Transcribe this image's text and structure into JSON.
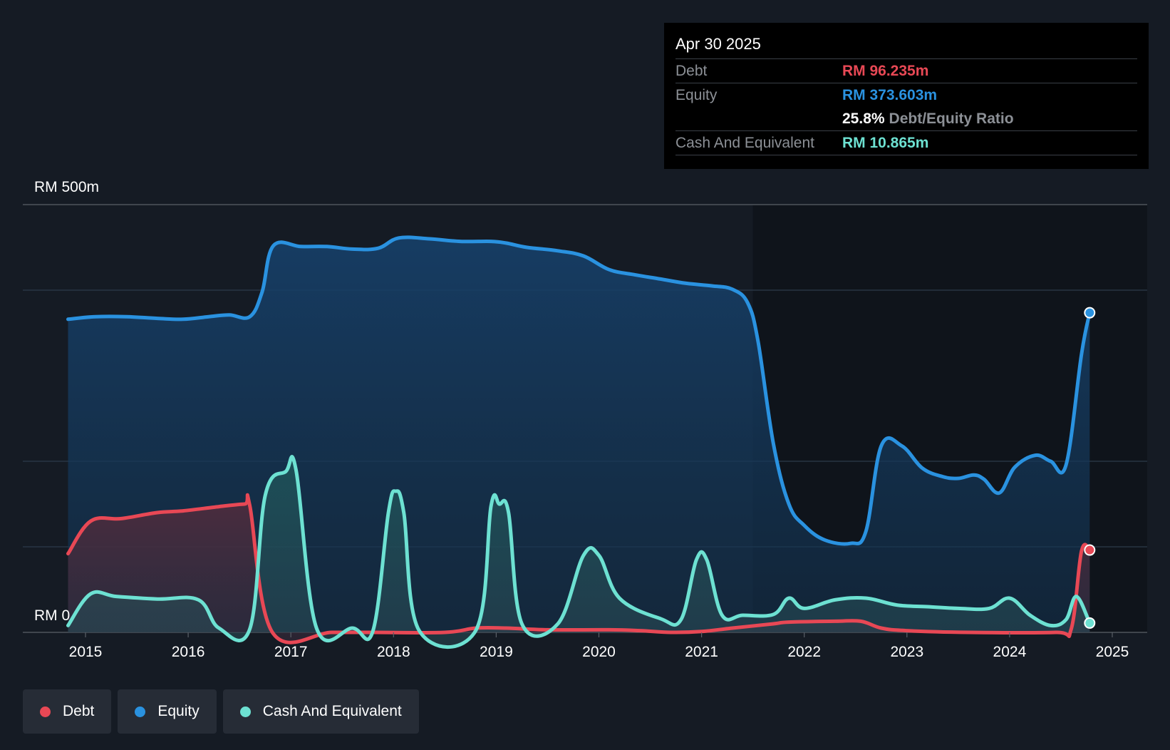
{
  "chart_data": {
    "type": "area",
    "y_top_label": "RM 500m",
    "y_zero_label": "RM 0",
    "ylim": [
      0,
      500
    ],
    "gridlines": [
      100,
      200,
      400,
      500
    ],
    "x_ticks": [
      "2015",
      "2016",
      "2017",
      "2018",
      "2019",
      "2020",
      "2021",
      "2022",
      "2023",
      "2024",
      "2025"
    ],
    "x_tick_years": [
      2015,
      2016,
      2017,
      2018,
      2019,
      2020,
      2021,
      2022,
      2023,
      2024,
      2025
    ],
    "x_range": [
      2014.6,
      2025.33
    ],
    "forecast_start": 2021.5,
    "series": [
      {
        "name": "Equity",
        "color": "#2a92e0",
        "points": [
          [
            2014.83,
            366
          ],
          [
            2015.1,
            369
          ],
          [
            2015.4,
            369
          ],
          [
            2015.7,
            367
          ],
          [
            2015.95,
            366
          ],
          [
            2016.2,
            369
          ],
          [
            2016.4,
            371
          ],
          [
            2016.6,
            369
          ],
          [
            2016.72,
            398
          ],
          [
            2016.83,
            452
          ],
          [
            2017.1,
            451
          ],
          [
            2017.35,
            451
          ],
          [
            2017.6,
            448
          ],
          [
            2017.85,
            449
          ],
          [
            2018.05,
            461
          ],
          [
            2018.35,
            460
          ],
          [
            2018.65,
            457
          ],
          [
            2018.95,
            457
          ],
          [
            2019.1,
            455
          ],
          [
            2019.3,
            450
          ],
          [
            2019.6,
            446
          ],
          [
            2019.85,
            440
          ],
          [
            2020.1,
            424
          ],
          [
            2020.35,
            418
          ],
          [
            2020.6,
            413
          ],
          [
            2020.85,
            408
          ],
          [
            2021.1,
            405
          ],
          [
            2021.3,
            401
          ],
          [
            2021.45,
            385
          ],
          [
            2021.55,
            340
          ],
          [
            2021.7,
            220
          ],
          [
            2021.85,
            150
          ],
          [
            2022.0,
            125
          ],
          [
            2022.2,
            108
          ],
          [
            2022.45,
            104
          ],
          [
            2022.6,
            118
          ],
          [
            2022.75,
            218
          ],
          [
            2022.95,
            218
          ],
          [
            2023.15,
            192
          ],
          [
            2023.35,
            182
          ],
          [
            2023.5,
            180
          ],
          [
            2023.65,
            184
          ],
          [
            2023.75,
            179
          ],
          [
            2023.9,
            163
          ],
          [
            2024.05,
            193
          ],
          [
            2024.25,
            207
          ],
          [
            2024.4,
            200
          ],
          [
            2024.55,
            196
          ],
          [
            2024.7,
            325
          ],
          [
            2024.78,
            373.6
          ]
        ]
      },
      {
        "name": "Debt",
        "color": "#e84855",
        "points": [
          [
            2014.83,
            92
          ],
          [
            2015.05,
            130
          ],
          [
            2015.35,
            133
          ],
          [
            2015.7,
            140
          ],
          [
            2015.95,
            142
          ],
          [
            2016.3,
            147
          ],
          [
            2016.55,
            150
          ],
          [
            2016.6,
            148
          ],
          [
            2016.82,
            0
          ],
          [
            2017.4,
            0
          ],
          [
            2017.8,
            0
          ],
          [
            2018.5,
            0
          ],
          [
            2018.8,
            5
          ],
          [
            2019.1,
            5
          ],
          [
            2019.5,
            3
          ],
          [
            2020.1,
            3
          ],
          [
            2020.4,
            2
          ],
          [
            2020.7,
            0
          ],
          [
            2021.0,
            1
          ],
          [
            2021.3,
            5
          ],
          [
            2021.7,
            10
          ],
          [
            2021.85,
            12
          ],
          [
            2022.3,
            13
          ],
          [
            2022.55,
            13
          ],
          [
            2022.75,
            5
          ],
          [
            2023.0,
            2
          ],
          [
            2023.6,
            0
          ],
          [
            2024.45,
            0
          ],
          [
            2024.6,
            4
          ],
          [
            2024.7,
            95
          ],
          [
            2024.78,
            96.2
          ]
        ]
      },
      {
        "name": "Cash And Equivalent",
        "color": "#6de1d2",
        "points": [
          [
            2014.83,
            8
          ],
          [
            2015.05,
            45
          ],
          [
            2015.3,
            42
          ],
          [
            2015.7,
            39
          ],
          [
            2016.1,
            38
          ],
          [
            2016.3,
            5
          ],
          [
            2016.6,
            4
          ],
          [
            2016.75,
            160
          ],
          [
            2016.95,
            188
          ],
          [
            2017.05,
            190
          ],
          [
            2017.25,
            5
          ],
          [
            2017.6,
            5
          ],
          [
            2017.8,
            2
          ],
          [
            2017.95,
            140
          ],
          [
            2018.02,
            165
          ],
          [
            2018.1,
            140
          ],
          [
            2018.25,
            2
          ],
          [
            2018.8,
            2
          ],
          [
            2018.95,
            148
          ],
          [
            2019.03,
            150
          ],
          [
            2019.12,
            140
          ],
          [
            2019.25,
            10
          ],
          [
            2019.6,
            10
          ],
          [
            2019.85,
            90
          ],
          [
            2020.0,
            90
          ],
          [
            2020.2,
            40
          ],
          [
            2020.6,
            16
          ],
          [
            2020.8,
            15
          ],
          [
            2020.95,
            85
          ],
          [
            2021.05,
            85
          ],
          [
            2021.2,
            20
          ],
          [
            2021.4,
            20
          ],
          [
            2021.7,
            21
          ],
          [
            2021.85,
            40
          ],
          [
            2022.0,
            28
          ],
          [
            2022.3,
            38
          ],
          [
            2022.6,
            40
          ],
          [
            2022.9,
            32
          ],
          [
            2023.2,
            30
          ],
          [
            2023.5,
            28
          ],
          [
            2023.8,
            28
          ],
          [
            2024.0,
            40
          ],
          [
            2024.2,
            20
          ],
          [
            2024.4,
            8
          ],
          [
            2024.55,
            15
          ],
          [
            2024.65,
            42
          ],
          [
            2024.78,
            10.9
          ]
        ]
      }
    ],
    "legend": [
      "Debt",
      "Equity",
      "Cash And Equivalent"
    ]
  },
  "tooltip": {
    "date": "Apr 30 2025",
    "debt_label": "Debt",
    "debt_value": "RM 96.235m",
    "equity_label": "Equity",
    "equity_value": "RM 373.603m",
    "ratio_value": "25.8%",
    "ratio_label": "Debt/Equity Ratio",
    "cash_label": "Cash And Equivalent",
    "cash_value": "RM 10.865m"
  },
  "legend_items": [
    {
      "label": "Debt",
      "color": "#e84855"
    },
    {
      "label": "Equity",
      "color": "#2a92e0"
    },
    {
      "label": "Cash And Equivalent",
      "color": "#6de1d2"
    }
  ]
}
